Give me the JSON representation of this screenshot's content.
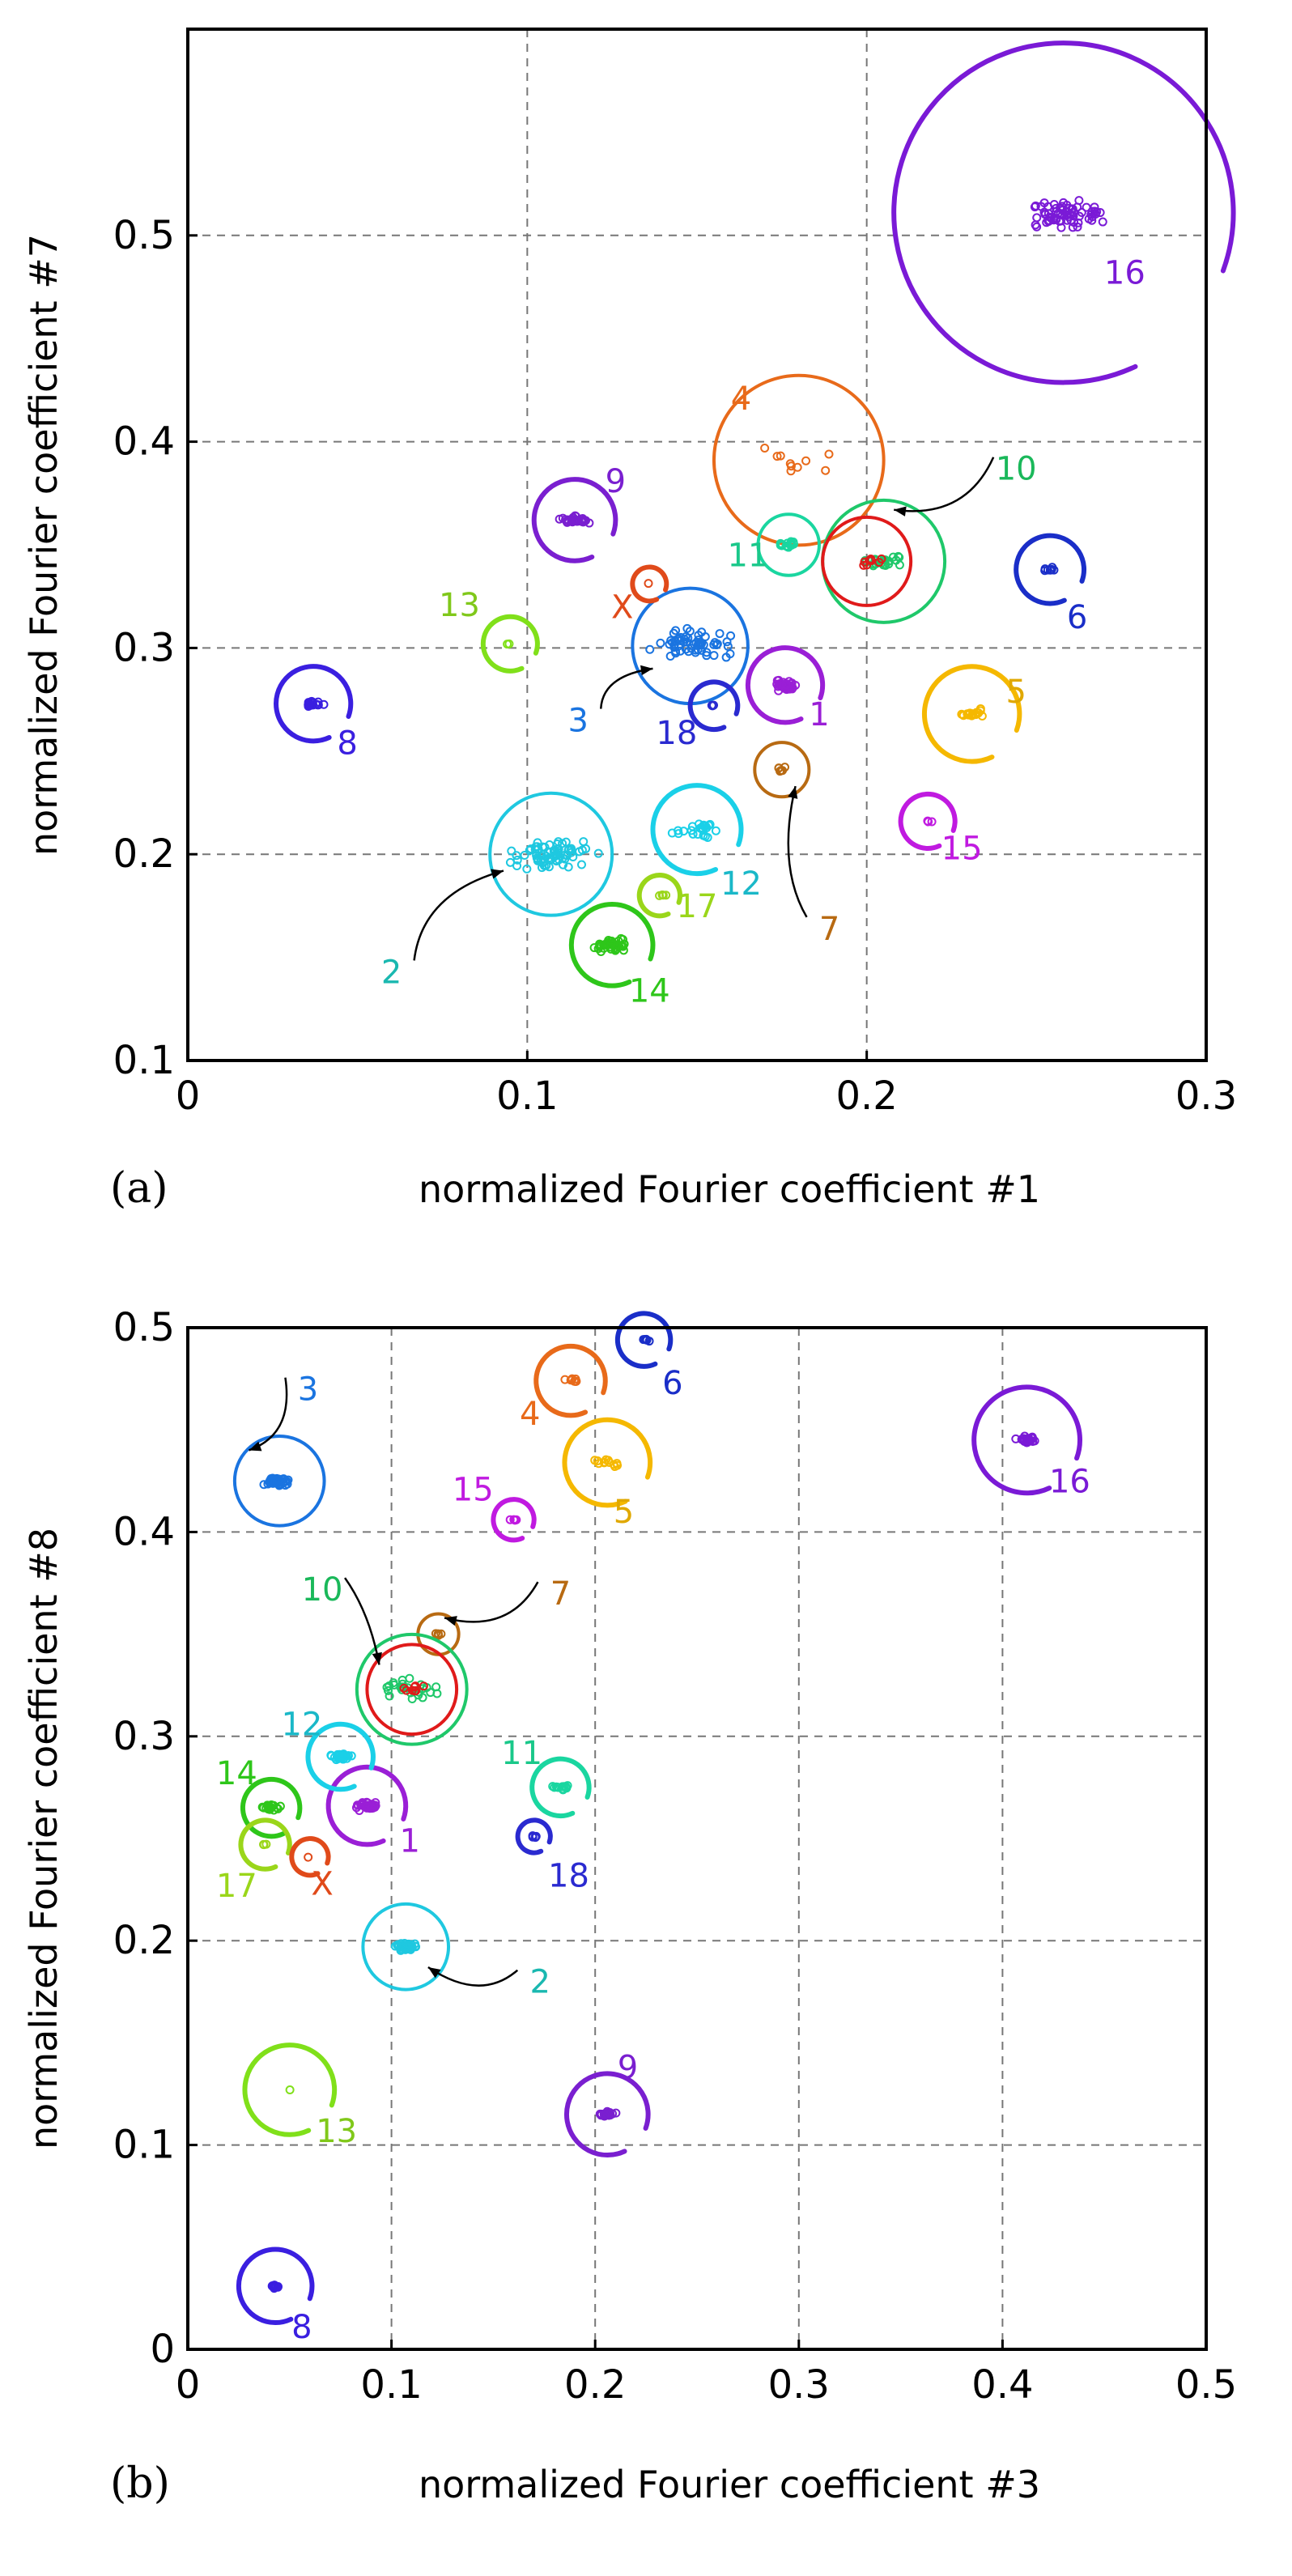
{
  "chart_data": [
    {
      "type": "scatter",
      "panel_label": "(a)",
      "xlabel": "normalized Fourier coefficient #1",
      "ylabel": "normalized Fourier coefficient #7",
      "xlim": [
        0,
        0.3
      ],
      "ylim": [
        0.1,
        0.6
      ],
      "xticks": [
        0,
        0.1,
        0.2,
        0.3
      ],
      "xtick_labels": [
        "0",
        "0.1",
        "0.2",
        "0.3"
      ],
      "yticks": [
        0.1,
        0.2,
        0.3,
        0.4,
        0.5
      ],
      "ytick_labels": [
        "0.1",
        "0.2",
        "0.3",
        "0.4",
        "0.5"
      ],
      "grid": true,
      "clusters": [
        {
          "label": "1",
          "x": 0.176,
          "y": 0.282,
          "r": 0.011,
          "spread": 0.005,
          "n": 40,
          "color": "#9a1fd6",
          "circle": "arc"
        },
        {
          "label": "2",
          "x": 0.107,
          "y": 0.2,
          "r": 0.018,
          "spread": 0.012,
          "n": 70,
          "color": "#1fc8e0",
          "circle": "full"
        },
        {
          "label": "3",
          "x": 0.148,
          "y": 0.301,
          "r": 0.017,
          "spread": 0.012,
          "n": 60,
          "color": "#1a74e0",
          "circle": "full"
        },
        {
          "label": "4",
          "x": 0.18,
          "y": 0.391,
          "r": 0.025,
          "spread": 0.013,
          "n": 10,
          "color": "#e86a1a",
          "circle": "full"
        },
        {
          "label": "5",
          "x": 0.231,
          "y": 0.268,
          "r": 0.014,
          "spread": 0.004,
          "n": 15,
          "color": "#f5b800",
          "circle": "arc"
        },
        {
          "label": "6",
          "x": 0.254,
          "y": 0.338,
          "r": 0.01,
          "spread": 0.003,
          "n": 8,
          "color": "#1a2ec8",
          "circle": "arc"
        },
        {
          "label": "7",
          "x": 0.175,
          "y": 0.241,
          "r": 0.008,
          "spread": 0.002,
          "n": 6,
          "color": "#b86a12",
          "circle": "full"
        },
        {
          "label": "8",
          "x": 0.037,
          "y": 0.273,
          "r": 0.011,
          "spread": 0.003,
          "n": 20,
          "color": "#3a1fe0",
          "circle": "arc"
        },
        {
          "label": "9",
          "x": 0.114,
          "y": 0.362,
          "r": 0.012,
          "spread": 0.004,
          "n": 30,
          "color": "#7a1fd0",
          "circle": "arc"
        },
        {
          "label": "10",
          "x": 0.205,
          "y": 0.342,
          "r": 0.018,
          "spread": 0.006,
          "n": 25,
          "color": "#1fc86a",
          "circle": "full"
        },
        {
          "label": "11",
          "x": 0.177,
          "y": 0.35,
          "r": 0.009,
          "spread": 0.003,
          "n": 15,
          "color": "#1ad6a0",
          "circle": "full"
        },
        {
          "label": "12",
          "x": 0.15,
          "y": 0.212,
          "r": 0.013,
          "spread": 0.007,
          "n": 25,
          "color": "#1ad0e8",
          "circle": "arc"
        },
        {
          "label": "13",
          "x": 0.095,
          "y": 0.302,
          "r": 0.008,
          "spread": 0.001,
          "n": 2,
          "color": "#80e01a",
          "circle": "arc"
        },
        {
          "label": "14",
          "x": 0.125,
          "y": 0.156,
          "r": 0.012,
          "spread": 0.005,
          "n": 40,
          "color": "#2ec61a",
          "circle": "arc"
        },
        {
          "label": "15",
          "x": 0.218,
          "y": 0.216,
          "r": 0.008,
          "spread": 0.002,
          "n": 3,
          "color": "#c01ae0",
          "circle": "arc"
        },
        {
          "label": "16",
          "x": 0.258,
          "y": 0.511,
          "r": 0.05,
          "spread": 0.013,
          "n": 70,
          "color": "#7a1ad6",
          "circle": "arc"
        },
        {
          "label": "17",
          "x": 0.139,
          "y": 0.18,
          "r": 0.006,
          "spread": 0.002,
          "n": 4,
          "color": "#9ad61a",
          "circle": "arc"
        },
        {
          "label": "18",
          "x": 0.155,
          "y": 0.272,
          "r": 0.007,
          "spread": 0.002,
          "n": 3,
          "color": "#2a2ad0",
          "circle": "arc"
        },
        {
          "label": "X",
          "x": 0.136,
          "y": 0.331,
          "r": 0.005,
          "spread": 0.001,
          "n": 1,
          "color": "#e04a1a",
          "circle": "arc"
        },
        {
          "label": "",
          "x": 0.2,
          "y": 0.342,
          "r": 0.013,
          "spread": 0.004,
          "n": 8,
          "color": "#e01a1a",
          "circle": "full"
        }
      ],
      "annotations": [
        {
          "label": "1",
          "lx": 0.186,
          "ly": 0.268,
          "color": "#9a1fd6"
        },
        {
          "label": "2",
          "lx": 0.06,
          "ly": 0.143,
          "color": "#1ab8b0",
          "arrow_to": [
            0.093,
            0.192
          ]
        },
        {
          "label": "3",
          "lx": 0.115,
          "ly": 0.265,
          "color": "#1a74e0",
          "arrow_to": [
            0.137,
            0.29
          ]
        },
        {
          "label": "4",
          "lx": 0.163,
          "ly": 0.421,
          "color": "#e86a1a"
        },
        {
          "label": "5",
          "lx": 0.244,
          "ly": 0.279,
          "color": "#e0a800"
        },
        {
          "label": "6",
          "lx": 0.262,
          "ly": 0.315,
          "color": "#1a2ec8"
        },
        {
          "label": "7",
          "lx": 0.189,
          "ly": 0.164,
          "color": "#b86a12",
          "arrow_to": [
            0.179,
            0.233
          ]
        },
        {
          "label": "8",
          "lx": 0.047,
          "ly": 0.254,
          "color": "#3a1fe0"
        },
        {
          "label": "9",
          "lx": 0.126,
          "ly": 0.381,
          "color": "#7a1fd0"
        },
        {
          "label": "10",
          "lx": 0.244,
          "ly": 0.387,
          "color": "#1ab85a",
          "arrow_to": [
            0.208,
            0.367
          ]
        },
        {
          "label": "11",
          "lx": 0.165,
          "ly": 0.345,
          "color": "#1ac88a"
        },
        {
          "label": "12",
          "lx": 0.163,
          "ly": 0.186,
          "color": "#1ab8c8"
        },
        {
          "label": "13",
          "lx": 0.08,
          "ly": 0.321,
          "color": "#80c81a"
        },
        {
          "label": "14",
          "lx": 0.136,
          "ly": 0.134,
          "color": "#2ec61a"
        },
        {
          "label": "15",
          "lx": 0.228,
          "ly": 0.203,
          "color": "#c01ae0"
        },
        {
          "label": "16",
          "lx": 0.276,
          "ly": 0.482,
          "color": "#7a1ad6"
        },
        {
          "label": "17",
          "lx": 0.15,
          "ly": 0.175,
          "color": "#9ad61a"
        },
        {
          "label": "18",
          "lx": 0.144,
          "ly": 0.259,
          "color": "#2a2ad0"
        },
        {
          "label": "X",
          "lx": 0.128,
          "ly": 0.32,
          "color": "#e04a1a"
        }
      ]
    },
    {
      "type": "scatter",
      "panel_label": "(b)",
      "xlabel": "normalized Fourier coefficient #3",
      "ylabel": "normalized Fourier coefficient #8",
      "xlim": [
        0,
        0.5
      ],
      "ylim": [
        0,
        0.5
      ],
      "xticks": [
        0,
        0.1,
        0.2,
        0.3,
        0.4,
        0.5
      ],
      "xtick_labels": [
        "0",
        "0.1",
        "0.2",
        "0.3",
        "0.4",
        "0.5"
      ],
      "yticks": [
        0,
        0.1,
        0.2,
        0.3,
        0.4,
        0.5
      ],
      "ytick_labels": [
        "0",
        "0.1",
        "0.2",
        "0.3",
        "0.4",
        "0.5"
      ],
      "grid": true,
      "clusters": [
        {
          "label": "1",
          "x": 0.088,
          "y": 0.266,
          "r": 0.019,
          "spread": 0.007,
          "n": 30,
          "color": "#9a1fd6",
          "circle": "arc"
        },
        {
          "label": "2",
          "x": 0.107,
          "y": 0.197,
          "r": 0.021,
          "spread": 0.006,
          "n": 40,
          "color": "#1fc8e0",
          "circle": "full"
        },
        {
          "label": "3",
          "x": 0.045,
          "y": 0.425,
          "r": 0.022,
          "spread": 0.007,
          "n": 40,
          "color": "#1a74e0",
          "circle": "full"
        },
        {
          "label": "4",
          "x": 0.188,
          "y": 0.474,
          "r": 0.017,
          "spread": 0.004,
          "n": 8,
          "color": "#e86a1a",
          "circle": "arc"
        },
        {
          "label": "5",
          "x": 0.206,
          "y": 0.434,
          "r": 0.021,
          "spread": 0.006,
          "n": 12,
          "color": "#f5b800",
          "circle": "arc"
        },
        {
          "label": "6",
          "x": 0.224,
          "y": 0.494,
          "r": 0.013,
          "spread": 0.003,
          "n": 6,
          "color": "#1a2ec8",
          "circle": "arc"
        },
        {
          "label": "7",
          "x": 0.123,
          "y": 0.35,
          "r": 0.01,
          "spread": 0.002,
          "n": 6,
          "color": "#b86a12",
          "circle": "full"
        },
        {
          "label": "8",
          "x": 0.043,
          "y": 0.031,
          "r": 0.018,
          "spread": 0.003,
          "n": 15,
          "color": "#3a1fe0",
          "circle": "arc"
        },
        {
          "label": "9",
          "x": 0.206,
          "y": 0.115,
          "r": 0.02,
          "spread": 0.004,
          "n": 25,
          "color": "#7a1fd0",
          "circle": "arc"
        },
        {
          "label": "10",
          "x": 0.11,
          "y": 0.323,
          "r": 0.027,
          "spread": 0.014,
          "n": 25,
          "color": "#1fc86a",
          "circle": "full"
        },
        {
          "label": "11",
          "x": 0.183,
          "y": 0.275,
          "r": 0.014,
          "spread": 0.004,
          "n": 15,
          "color": "#1ad6a0",
          "circle": "arc"
        },
        {
          "label": "12",
          "x": 0.075,
          "y": 0.29,
          "r": 0.016,
          "spread": 0.005,
          "n": 25,
          "color": "#1ad0e8",
          "circle": "arc"
        },
        {
          "label": "13",
          "x": 0.05,
          "y": 0.127,
          "r": 0.022,
          "spread": 0.001,
          "n": 1,
          "color": "#80e01a",
          "circle": "arc"
        },
        {
          "label": "14",
          "x": 0.041,
          "y": 0.265,
          "r": 0.014,
          "spread": 0.005,
          "n": 20,
          "color": "#2ec61a",
          "circle": "arc"
        },
        {
          "label": "15",
          "x": 0.16,
          "y": 0.406,
          "r": 0.01,
          "spread": 0.002,
          "n": 4,
          "color": "#c01ae0",
          "circle": "arc"
        },
        {
          "label": "16",
          "x": 0.412,
          "y": 0.445,
          "r": 0.026,
          "spread": 0.005,
          "n": 30,
          "color": "#7a1ad6",
          "circle": "arc"
        },
        {
          "label": "17",
          "x": 0.038,
          "y": 0.247,
          "r": 0.012,
          "spread": 0.002,
          "n": 3,
          "color": "#9ad61a",
          "circle": "arc"
        },
        {
          "label": "18",
          "x": 0.17,
          "y": 0.251,
          "r": 0.008,
          "spread": 0.002,
          "n": 5,
          "color": "#2a2ad0",
          "circle": "arc"
        },
        {
          "label": "X",
          "x": 0.06,
          "y": 0.241,
          "r": 0.009,
          "spread": 0.001,
          "n": 1,
          "color": "#e04a1a",
          "circle": "arc"
        },
        {
          "label": "",
          "x": 0.11,
          "y": 0.323,
          "r": 0.022,
          "spread": 0.008,
          "n": 8,
          "color": "#e01a1a",
          "circle": "full"
        }
      ],
      "annotations": [
        {
          "label": "1",
          "lx": 0.109,
          "ly": 0.249,
          "color": "#9a1fd6"
        },
        {
          "label": "2",
          "lx": 0.173,
          "ly": 0.18,
          "color": "#1ab8b0",
          "arrow_to": [
            0.118,
            0.187
          ]
        },
        {
          "label": "3",
          "lx": 0.059,
          "ly": 0.47,
          "color": "#1a74e0",
          "arrow_to": [
            0.03,
            0.44
          ]
        },
        {
          "label": "4",
          "lx": 0.168,
          "ly": 0.458,
          "color": "#e86a1a"
        },
        {
          "label": "5",
          "lx": 0.214,
          "ly": 0.41,
          "color": "#e0a800"
        },
        {
          "label": "6",
          "lx": 0.238,
          "ly": 0.473,
          "color": "#1a2ec8"
        },
        {
          "label": "7",
          "lx": 0.183,
          "ly": 0.37,
          "color": "#b86a12",
          "arrow_to": [
            0.126,
            0.358
          ]
        },
        {
          "label": "8",
          "lx": 0.056,
          "ly": 0.011,
          "color": "#3a1fe0"
        },
        {
          "label": "9",
          "lx": 0.216,
          "ly": 0.138,
          "color": "#7a1fd0"
        },
        {
          "label": "10",
          "lx": 0.066,
          "ly": 0.372,
          "color": "#1ab85a",
          "arrow_to": [
            0.094,
            0.335
          ]
        },
        {
          "label": "11",
          "lx": 0.164,
          "ly": 0.292,
          "color": "#1ac88a"
        },
        {
          "label": "12",
          "lx": 0.056,
          "ly": 0.306,
          "color": "#1ab8c8"
        },
        {
          "label": "13",
          "lx": 0.073,
          "ly": 0.107,
          "color": "#80c81a"
        },
        {
          "label": "14",
          "lx": 0.024,
          "ly": 0.282,
          "color": "#2ec61a"
        },
        {
          "label": "15",
          "lx": 0.14,
          "ly": 0.421,
          "color": "#c01ae0"
        },
        {
          "label": "16",
          "lx": 0.433,
          "ly": 0.425,
          "color": "#7a1ad6"
        },
        {
          "label": "17",
          "lx": 0.024,
          "ly": 0.227,
          "color": "#9ad61a"
        },
        {
          "label": "18",
          "lx": 0.187,
          "ly": 0.232,
          "color": "#2a2ad0"
        },
        {
          "label": "X",
          "lx": 0.066,
          "ly": 0.228,
          "color": "#e04a1a"
        }
      ]
    }
  ]
}
